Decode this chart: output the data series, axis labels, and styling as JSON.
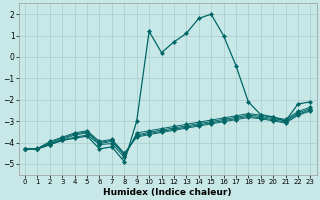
{
  "title": "",
  "xlabel": "Humidex (Indice chaleur)",
  "ylabel": "",
  "bg_color": "#c8e8e8",
  "grid_color": "#b0d0d0",
  "line_color": "#006666",
  "xlim": [
    -0.5,
    23.5
  ],
  "ylim": [
    -5.5,
    2.5
  ],
  "yticks": [
    -5,
    -4,
    -3,
    -2,
    -1,
    0,
    1,
    2
  ],
  "xticks": [
    0,
    1,
    2,
    3,
    4,
    5,
    6,
    7,
    8,
    9,
    10,
    11,
    12,
    13,
    14,
    15,
    16,
    17,
    18,
    19,
    20,
    21,
    22,
    23
  ],
  "line1": [
    -4.3,
    -4.3,
    -4.1,
    -3.9,
    -3.8,
    -3.7,
    -4.3,
    -4.2,
    -4.9,
    -3.0,
    1.2,
    0.2,
    0.7,
    1.1,
    1.8,
    2.0,
    1.0,
    -0.4,
    -2.1,
    -2.7,
    -2.8,
    -3.0,
    -2.2,
    -2.1
  ],
  "line2": [
    -4.3,
    -4.3,
    -4.1,
    -3.9,
    -3.75,
    -3.65,
    -4.1,
    -4.05,
    -4.7,
    -3.55,
    -3.45,
    -3.35,
    -3.25,
    -3.15,
    -3.05,
    -2.95,
    -2.85,
    -2.75,
    -2.65,
    -2.72,
    -2.82,
    -2.92,
    -2.55,
    -2.35
  ],
  "line3": [
    -4.3,
    -4.3,
    -4.05,
    -3.85,
    -3.65,
    -3.55,
    -4.05,
    -3.95,
    -4.6,
    -3.65,
    -3.52,
    -3.42,
    -3.32,
    -3.22,
    -3.12,
    -3.02,
    -2.92,
    -2.82,
    -2.72,
    -2.78,
    -2.88,
    -2.98,
    -2.62,
    -2.42
  ],
  "line4": [
    -4.3,
    -4.3,
    -4.0,
    -3.8,
    -3.6,
    -3.5,
    -4.0,
    -3.9,
    -4.55,
    -3.7,
    -3.58,
    -3.48,
    -3.38,
    -3.28,
    -3.18,
    -3.08,
    -2.98,
    -2.88,
    -2.78,
    -2.84,
    -2.94,
    -3.04,
    -2.68,
    -2.48
  ],
  "line5": [
    -4.3,
    -4.28,
    -3.95,
    -3.75,
    -3.55,
    -3.45,
    -3.95,
    -3.85,
    -4.5,
    -3.75,
    -3.63,
    -3.53,
    -3.43,
    -3.33,
    -3.23,
    -3.13,
    -3.03,
    -2.93,
    -2.83,
    -2.89,
    -2.99,
    -3.09,
    -2.73,
    -2.53
  ]
}
